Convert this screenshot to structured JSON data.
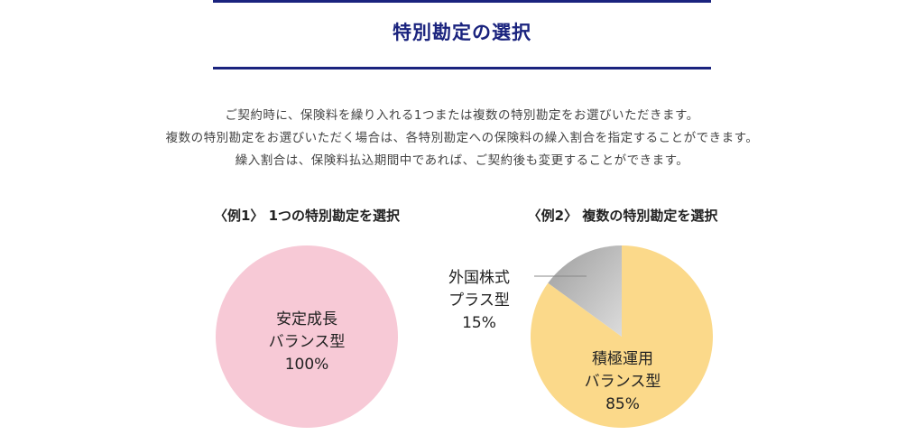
{
  "section": {
    "title": "特別勘定の選択"
  },
  "intro": {
    "line1": "ご契約時に、保険料を繰り入れる1つまたは複数の特別勘定をお選びいただきます。",
    "line2": "複数の特別勘定をお選びいただく場合は、各特別勘定への保険料の繰入割合を指定することができます。",
    "line3": "繰入割合は、保険料払込期間中であれば、ご契約後も変更することができます。"
  },
  "chart_data": [
    {
      "type": "pie",
      "title": "〈例1〉 1つの特別勘定を選択",
      "slices": [
        {
          "name_line1": "安定成長",
          "name_line2": "バランス型",
          "value": 100,
          "label": "100%",
          "color": "#f7c9d6"
        }
      ]
    },
    {
      "type": "pie",
      "title": "〈例2〉 複数の特別勘定を選択",
      "slices": [
        {
          "name_line1": "積極運用",
          "name_line2": "バランス型",
          "value": 85,
          "label": "85%",
          "color": "#fbd98a"
        },
        {
          "name_line1": "外国株式",
          "name_line2": "プラス型",
          "value": 15,
          "label": "15%",
          "color": "#b3b3b3"
        }
      ]
    }
  ]
}
